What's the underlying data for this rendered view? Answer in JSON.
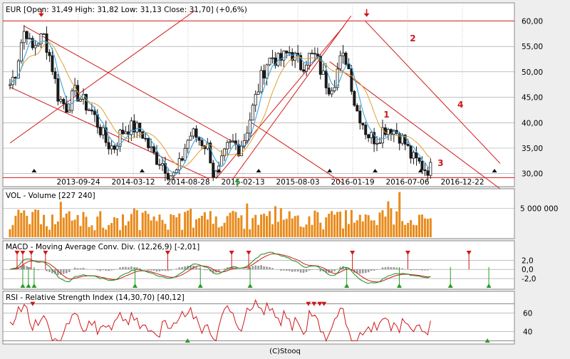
{
  "footer": "(C)Stooq",
  "colors": {
    "candle": "#1a1a1a",
    "ma_blue": "#3aa6e0",
    "ma_orange": "#e0a030",
    "trend": "#d01818",
    "volume": "#e88a1a",
    "macd": "#1a8a1a",
    "signal": "#d01818",
    "hist": "#9a9a9a",
    "rsi": "#d01818",
    "up_marker": "#2a9a2a",
    "down_marker": "#d01818",
    "wave_label": "#d01818"
  },
  "chart_data": [
    {
      "type": "candlestick",
      "title": "EUR [Open: 31,49  High: 31,82  Low: 31,13  Close: 31,70] (+0,6%)",
      "x_tick_labels": [
        "2013-09-24",
        "2014-03-12",
        "2014-08-28",
        "2015-02-13",
        "2015-08-03",
        "2016-01-19",
        "2016-07-06",
        "2016-12-22"
      ],
      "y_ticks": [
        "60,00",
        "55,00",
        "50,00",
        "45,00",
        "40,00",
        "35,00",
        "30,00"
      ],
      "ylim": [
        28,
        63
      ],
      "close_path": [
        [
          0,
          47.5
        ],
        [
          8,
          50
        ],
        [
          16,
          56
        ],
        [
          22,
          59
        ],
        [
          30,
          54
        ],
        [
          38,
          56
        ],
        [
          48,
          57
        ],
        [
          58,
          52
        ],
        [
          68,
          45
        ],
        [
          80,
          43
        ],
        [
          92,
          46
        ],
        [
          104,
          44
        ],
        [
          116,
          42
        ],
        [
          126,
          39
        ],
        [
          136,
          36
        ],
        [
          146,
          35
        ],
        [
          156,
          38
        ],
        [
          166,
          39
        ],
        [
          176,
          39
        ],
        [
          186,
          38
        ],
        [
          196,
          35
        ],
        [
          206,
          33
        ],
        [
          216,
          32
        ],
        [
          224,
          30
        ],
        [
          232,
          29.5
        ],
        [
          240,
          32
        ],
        [
          248,
          36
        ],
        [
          256,
          38
        ],
        [
          264,
          37
        ],
        [
          272,
          36
        ],
        [
          280,
          35
        ],
        [
          286,
          30
        ],
        [
          292,
          29.5
        ],
        [
          298,
          32
        ],
        [
          306,
          35
        ],
        [
          314,
          36
        ],
        [
          322,
          35
        ],
        [
          330,
          37
        ],
        [
          338,
          41
        ],
        [
          346,
          45
        ],
        [
          354,
          49
        ],
        [
          362,
          52
        ],
        [
          370,
          53
        ],
        [
          378,
          52
        ],
        [
          386,
          53
        ],
        [
          394,
          54
        ],
        [
          400,
          53
        ],
        [
          410,
          51
        ],
        [
          420,
          53
        ],
        [
          430,
          53
        ],
        [
          438,
          50
        ],
        [
          448,
          47
        ],
        [
          456,
          48
        ],
        [
          464,
          52
        ],
        [
          472,
          53
        ],
        [
          478,
          50
        ],
        [
          486,
          43
        ],
        [
          494,
          41
        ],
        [
          502,
          38
        ],
        [
          510,
          37
        ],
        [
          518,
          37
        ],
        [
          526,
          39
        ],
        [
          536,
          39
        ],
        [
          546,
          38
        ],
        [
          556,
          36
        ],
        [
          566,
          33
        ],
        [
          576,
          32
        ],
        [
          584,
          31
        ],
        [
          592,
          31
        ]
      ],
      "ma_blue_lag": 4,
      "ma_orange_lag": 10,
      "trend_lines": [
        {
          "from": [
            20,
            59
          ],
          "to": [
            330,
            35
          ]
        },
        {
          "from": [
            0,
            47
          ],
          "to": [
            280,
            29
          ]
        },
        {
          "from": [
            0,
            36
          ],
          "to": [
            260,
            62
          ]
        },
        {
          "from": [
            290,
            29
          ],
          "to": [
            470,
            59
          ]
        },
        {
          "from": [
            314,
            29
          ],
          "to": [
            480,
            61
          ]
        },
        {
          "from": [
            340,
            40
          ],
          "to": [
            470,
            28
          ]
        },
        {
          "from": [
            500,
            60
          ],
          "to": [
            690,
            32
          ]
        },
        {
          "from": [
            450,
            52
          ],
          "to": [
            690,
            27
          ]
        }
      ],
      "horizontal_lines": [
        60,
        29.2
      ],
      "wave_labels": [
        {
          "text": "1",
          "x": 530,
          "y": 41
        },
        {
          "text": "2",
          "x": 567,
          "y": 56
        },
        {
          "text": "3",
          "x": 606,
          "y": 31.5
        },
        {
          "text": "4",
          "x": 634,
          "y": 43
        }
      ],
      "top_arrows": [
        {
          "x": 44,
          "y": 61.5
        },
        {
          "x": 502,
          "y": 61.5
        }
      ],
      "up_arrow": {
        "x": 320,
        "y": 28.3
      },
      "bottom_markers": [
        34,
        186,
        294,
        350,
        450,
        514,
        578,
        682
      ]
    },
    {
      "type": "bar",
      "title": "VOL - Volume [227 240]",
      "y_ticks": [
        "5 000 000"
      ],
      "ylim": [
        0,
        8000000
      ]
    },
    {
      "type": "line",
      "title": "MACD - Moving Average Conv. Div. (12,26,9) [-2,01]",
      "y_ticks": [
        "2,0",
        "0,0",
        "-2,0"
      ],
      "ylim": [
        -4,
        5
      ],
      "down_markers": [
        10,
        18,
        30,
        50,
        222,
        312,
        336,
        482,
        560,
        646
      ],
      "up_markers": [
        18,
        26,
        34,
        176,
        268,
        338,
        474,
        548,
        620,
        674
      ]
    },
    {
      "type": "line",
      "title": "RSI - Relative Strength Index (14,30,70) [40,12]",
      "y_ticks": [
        "60",
        "40"
      ],
      "ylim": [
        28,
        78
      ],
      "levels": [
        30,
        70
      ],
      "down_markers": [
        32,
        420,
        428,
        436,
        442
      ],
      "up_markers": [
        250,
        672
      ]
    }
  ]
}
